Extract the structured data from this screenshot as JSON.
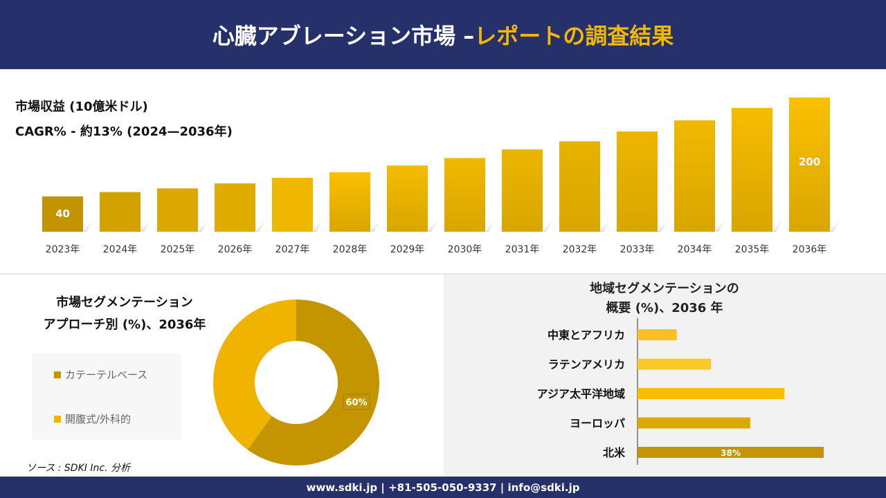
{
  "header": {
    "title_main": "心臓アブレーション市場 –",
    "title_accent": "レポートの調査結果"
  },
  "revenue": {
    "title": "市場収益 (10億米ドル)",
    "cagr": "CAGR% - 約13% (2024—2036年)"
  },
  "segment": {
    "title_line1": "市場セグメンテーション",
    "title_line2": "アプローチ別 (%)、2036年"
  },
  "region": {
    "title_line1": "地域セグメンテーションの",
    "title_line2": "概要 (%)、2036 年"
  },
  "source": "ソース : SDKI Inc. 分析",
  "footer": "www.sdki.jp | +81-505-050-9337 | info@sdki.jp",
  "chart_data": [
    {
      "type": "bar",
      "title": "市場収益 (10億米ドル)",
      "categories": [
        "2023年",
        "2024年",
        "2025年",
        "2026年",
        "2027年",
        "2028年",
        "2029年",
        "2030年",
        "2031年",
        "2032年",
        "2033年",
        "2034年",
        "2035年",
        "2036年"
      ],
      "values": [
        40,
        47,
        53,
        61,
        70,
        79,
        90,
        102,
        116,
        129,
        145,
        163,
        183,
        200
      ],
      "data_labels": {
        "0": "40",
        "13": "200"
      },
      "colors": [
        "#c49400",
        "#d4a200",
        "#daa800",
        "#e0ac00",
        "#efb700",
        "#fcc000",
        "#f5bb00",
        "#f0b800",
        "#ecb500",
        "#e8b200",
        "#edb500",
        "#f0b800",
        "#f5bc00",
        "#fac000"
      ]
    },
    {
      "type": "pie",
      "title": "市場セグメンテーション アプローチ別 (%)、2036年",
      "categories": [
        "カテーテルベース",
        "開腹式/外科的"
      ],
      "values": [
        60,
        40
      ],
      "data_labels": [
        "60%",
        ""
      ],
      "colors": [
        "#c49500",
        "#f0b400"
      ],
      "legend": "left"
    },
    {
      "type": "bar",
      "orientation": "horizontal",
      "title": "地域セグメンテーションの概要 (%)、2036 年",
      "categories": [
        "中東とアフリカ",
        "ラテンアメリカ",
        "アジア太平洋地域",
        "ヨーロッパ",
        "北米"
      ],
      "values": [
        8,
        15,
        30,
        23,
        38
      ],
      "data_labels": [
        "",
        "",
        "",
        "",
        "38%"
      ],
      "colors": [
        "#f8c020",
        "#fbc82a",
        "#f7bd00",
        "#dca900",
        "#c49500"
      ]
    }
  ]
}
